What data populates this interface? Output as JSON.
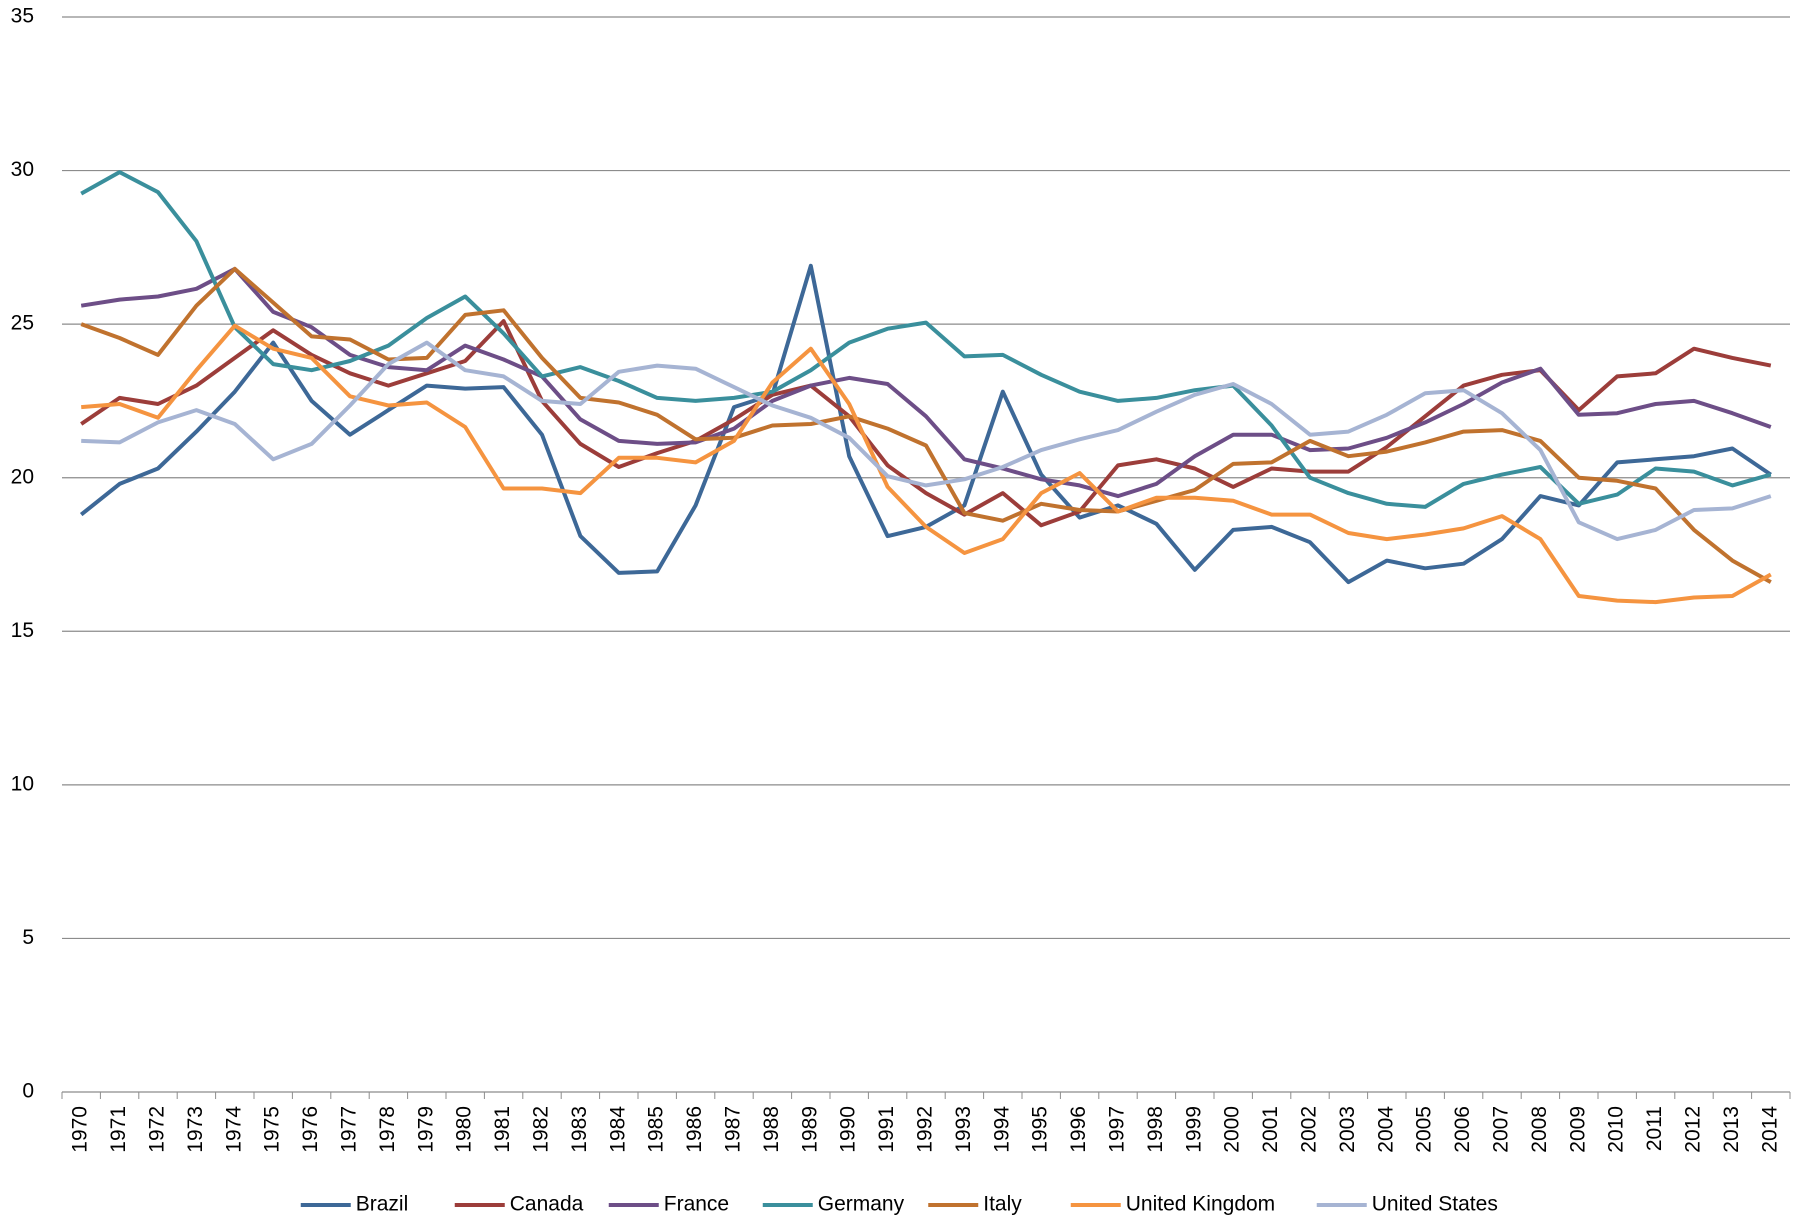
{
  "chart_data": {
    "type": "line",
    "categories": [
      "1970",
      "1971",
      "1972",
      "1973",
      "1974",
      "1975",
      "1976",
      "1977",
      "1978",
      "1979",
      "1980",
      "1981",
      "1982",
      "1983",
      "1984",
      "1985",
      "1986",
      "1987",
      "1988",
      "1989",
      "1990",
      "1991",
      "1992",
      "1993",
      "1994",
      "1995",
      "1996",
      "1997",
      "1998",
      "1999",
      "2000",
      "2001",
      "2002",
      "2003",
      "2004",
      "2005",
      "2006",
      "2007",
      "2008",
      "2009",
      "2010",
      "2011",
      "2012",
      "2013",
      "2014"
    ],
    "series": [
      {
        "name": "Brazil",
        "color": "#3d6897",
        "values": [
          18.8,
          19.8,
          20.3,
          21.5,
          22.8,
          24.4,
          22.5,
          21.4,
          22.2,
          23.0,
          22.9,
          22.95,
          21.4,
          18.1,
          16.9,
          16.95,
          19.1,
          22.3,
          22.7,
          26.9,
          20.7,
          18.1,
          18.4,
          19.1,
          22.8,
          20.1,
          18.7,
          19.1,
          18.5,
          17.0,
          18.3,
          18.4,
          17.9,
          16.6,
          17.3,
          17.05,
          17.2,
          18.0,
          19.4,
          19.1,
          20.5,
          20.6,
          20.7,
          20.95,
          20.1
        ]
      },
      {
        "name": "Canada",
        "color": "#9c3d3a",
        "values": [
          21.75,
          22.6,
          22.4,
          23.0,
          23.9,
          24.8,
          24.0,
          23.4,
          23.0,
          23.4,
          23.8,
          25.1,
          22.5,
          21.1,
          20.35,
          20.8,
          21.2,
          21.9,
          22.7,
          23.0,
          22.0,
          20.4,
          19.5,
          18.8,
          19.5,
          18.45,
          18.9,
          20.4,
          20.6,
          20.3,
          19.7,
          20.3,
          20.2,
          20.2,
          21.0,
          22.0,
          23.0,
          23.35,
          23.5,
          22.2,
          23.3,
          23.4,
          24.2,
          23.9,
          23.65
        ]
      },
      {
        "name": "France",
        "color": "#6d4e87",
        "values": [
          25.6,
          25.8,
          25.9,
          26.15,
          26.8,
          25.4,
          24.9,
          24.0,
          23.6,
          23.5,
          24.3,
          23.85,
          23.3,
          21.9,
          21.2,
          21.1,
          21.15,
          21.6,
          22.5,
          23.0,
          23.25,
          23.05,
          22.0,
          20.6,
          20.3,
          19.95,
          19.75,
          19.4,
          19.8,
          20.7,
          21.4,
          21.4,
          20.9,
          20.95,
          21.3,
          21.8,
          22.4,
          23.1,
          23.55,
          22.05,
          22.1,
          22.4,
          22.5,
          22.1,
          21.65
        ]
      },
      {
        "name": "Germany",
        "color": "#3a8f9c",
        "values": [
          29.25,
          29.95,
          29.3,
          27.7,
          24.9,
          23.7,
          23.5,
          23.8,
          24.3,
          25.2,
          25.9,
          24.7,
          23.3,
          23.6,
          23.15,
          22.6,
          22.5,
          22.6,
          22.8,
          23.5,
          24.4,
          24.85,
          25.05,
          23.95,
          24.0,
          23.35,
          22.8,
          22.5,
          22.6,
          22.85,
          23.0,
          21.7,
          20.0,
          19.5,
          19.15,
          19.05,
          19.8,
          20.1,
          20.35,
          19.15,
          19.45,
          20.3,
          20.2,
          19.75,
          20.1
        ]
      },
      {
        "name": "Italy",
        "color": "#c0722e",
        "values": [
          25.0,
          24.55,
          24.0,
          25.6,
          26.8,
          25.7,
          24.6,
          24.5,
          23.85,
          23.9,
          25.3,
          25.45,
          23.9,
          22.6,
          22.45,
          22.05,
          21.25,
          21.3,
          21.7,
          21.75,
          22.0,
          21.6,
          21.05,
          18.85,
          18.6,
          19.15,
          18.95,
          18.9,
          19.25,
          19.6,
          20.45,
          20.5,
          21.2,
          20.7,
          20.85,
          21.15,
          21.5,
          21.55,
          21.2,
          20.0,
          19.9,
          19.65,
          18.3,
          17.3,
          16.6
        ]
      },
      {
        "name": "United Kingdom",
        "color": "#f59440",
        "values": [
          22.3,
          22.4,
          21.95,
          23.5,
          24.95,
          24.2,
          23.9,
          22.65,
          22.35,
          22.45,
          21.65,
          19.65,
          19.65,
          19.5,
          20.65,
          20.65,
          20.5,
          21.2,
          23.1,
          24.2,
          22.4,
          19.7,
          18.4,
          17.55,
          18.0,
          19.5,
          20.15,
          18.9,
          19.35,
          19.35,
          19.25,
          18.8,
          18.8,
          18.2,
          18.0,
          18.15,
          18.35,
          18.75,
          18.0,
          16.15,
          16.0,
          15.95,
          16.1,
          16.15,
          16.85
        ]
      },
      {
        "name": "United States",
        "color": "#a6b4d3",
        "values": [
          21.2,
          21.15,
          21.8,
          22.2,
          21.75,
          20.6,
          21.1,
          22.35,
          23.7,
          24.4,
          23.5,
          23.3,
          22.5,
          22.4,
          23.45,
          23.65,
          23.55,
          22.95,
          22.35,
          21.95,
          21.3,
          20.05,
          19.75,
          19.95,
          20.35,
          20.9,
          21.25,
          21.55,
          22.15,
          22.7,
          23.05,
          22.4,
          21.4,
          21.5,
          22.05,
          22.75,
          22.85,
          22.1,
          20.9,
          18.55,
          18.0,
          18.3,
          18.95,
          19.0,
          19.4
        ]
      }
    ],
    "ylim": [
      0,
      35
    ],
    "yticks": [
      0,
      5,
      10,
      15,
      20,
      25,
      30,
      35
    ],
    "grid": true,
    "legend": "bottom"
  }
}
